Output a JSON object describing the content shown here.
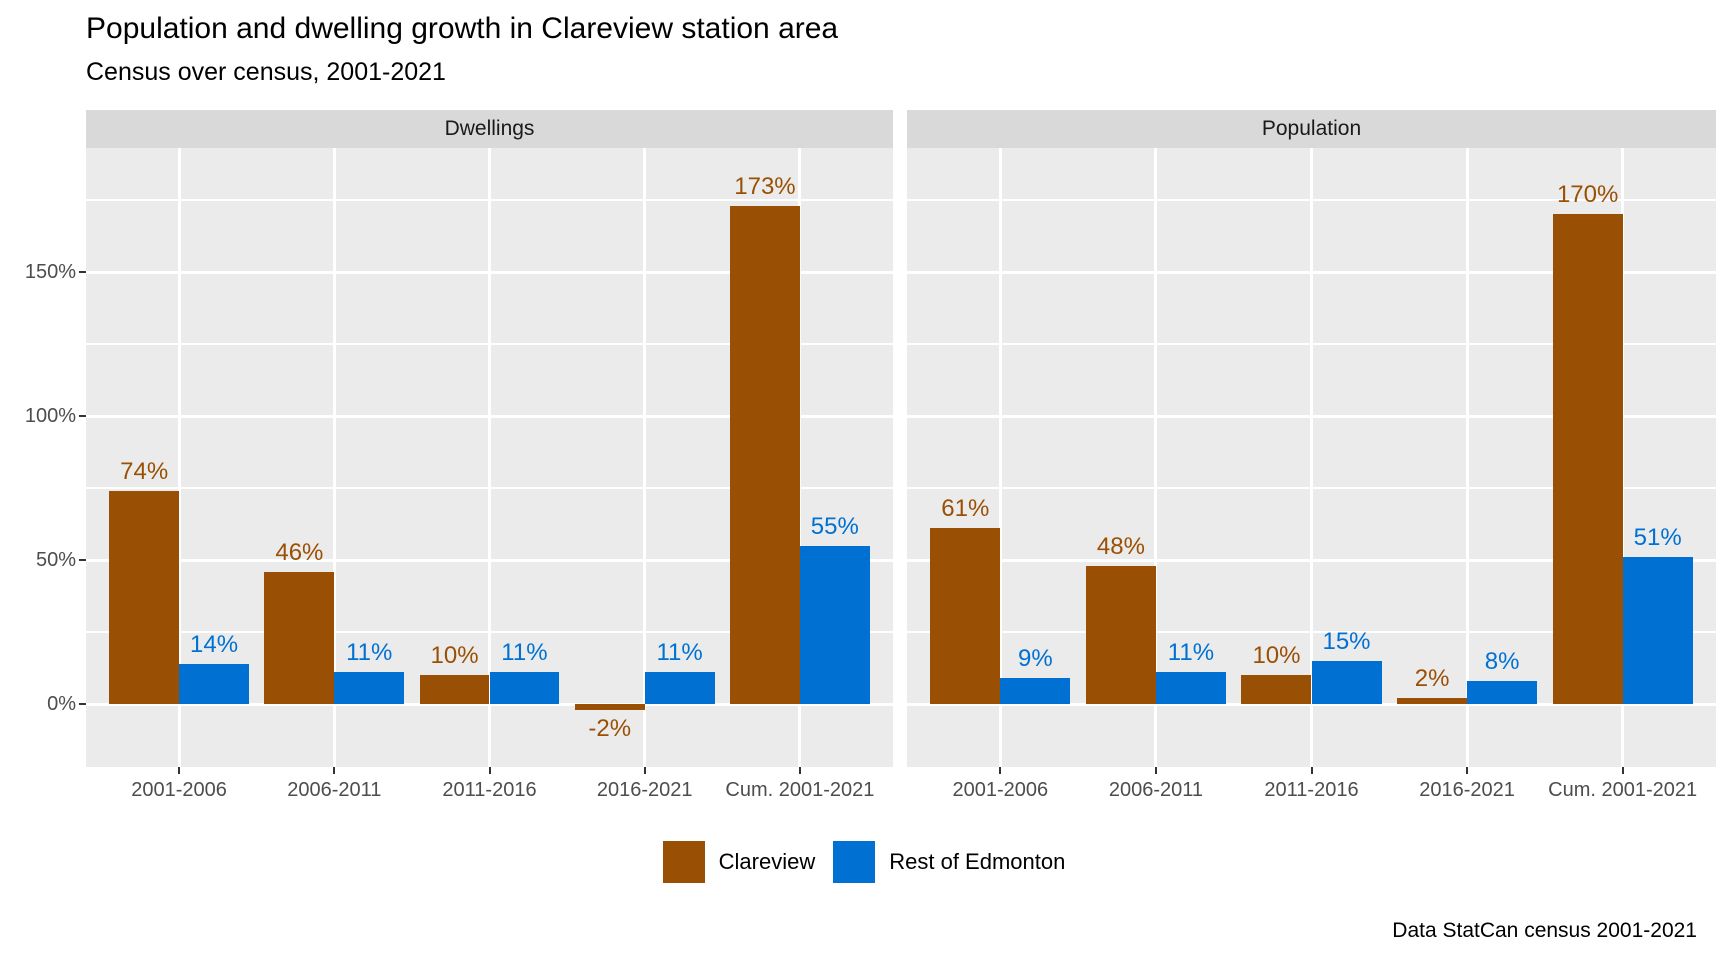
{
  "chart_data": {
    "type": "bar",
    "title": "Population and dwelling growth in Clareview station area",
    "subtitle": "Census over census, 2001-2021",
    "caption": "Data StatCan census 2001-2021",
    "categories": [
      "2001-2006",
      "2006-2011",
      "2011-2016",
      "2016-2021",
      "Cum. 2001-2021"
    ],
    "facets": [
      {
        "label": "Dwellings",
        "series": [
          {
            "name": "Clareview",
            "values": [
              74,
              46,
              10,
              -2,
              173
            ],
            "labels": [
              "74%",
              "46%",
              "10%",
              "-2%",
              "173%"
            ]
          },
          {
            "name": "Rest of Edmonton",
            "values": [
              14,
              11,
              11,
              11,
              55
            ],
            "labels": [
              "14%",
              "11%",
              "11%",
              "11%",
              "55%"
            ]
          }
        ]
      },
      {
        "label": "Population",
        "series": [
          {
            "name": "Clareview",
            "values": [
              61,
              48,
              10,
              2,
              170
            ],
            "labels": [
              "61%",
              "48%",
              "10%",
              "2%",
              "170%"
            ]
          },
          {
            "name": "Rest of Edmonton",
            "values": [
              9,
              11,
              15,
              8,
              51
            ],
            "labels": [
              "9%",
              "11%",
              "15%",
              "8%",
              "51%"
            ]
          }
        ]
      }
    ],
    "y_axis": {
      "ticks": [
        {
          "value": 0,
          "label": "0%"
        },
        {
          "value": 50,
          "label": "50%"
        },
        {
          "value": 100,
          "label": "100%"
        },
        {
          "value": 150,
          "label": "150%"
        }
      ],
      "minor_ticks": [
        25,
        75,
        125,
        175
      ],
      "range": [
        -21.9,
        193.1
      ]
    },
    "legend": {
      "position": "bottom",
      "items": [
        {
          "label": "Clareview",
          "color": "#9A5004"
        },
        {
          "label": "Rest of Edmonton",
          "color": "#0071D3"
        }
      ]
    },
    "colors": {
      "clareview": "#9A5004",
      "rest_of_edmonton": "#0071D3",
      "panel_background": "#EBEBEB",
      "strip_background": "#D9D9D9",
      "gridline": "#FFFFFF",
      "axis_text": "#4D4D4D",
      "tick_mark": "#333333",
      "text": "#000000"
    },
    "grid": "on"
  }
}
